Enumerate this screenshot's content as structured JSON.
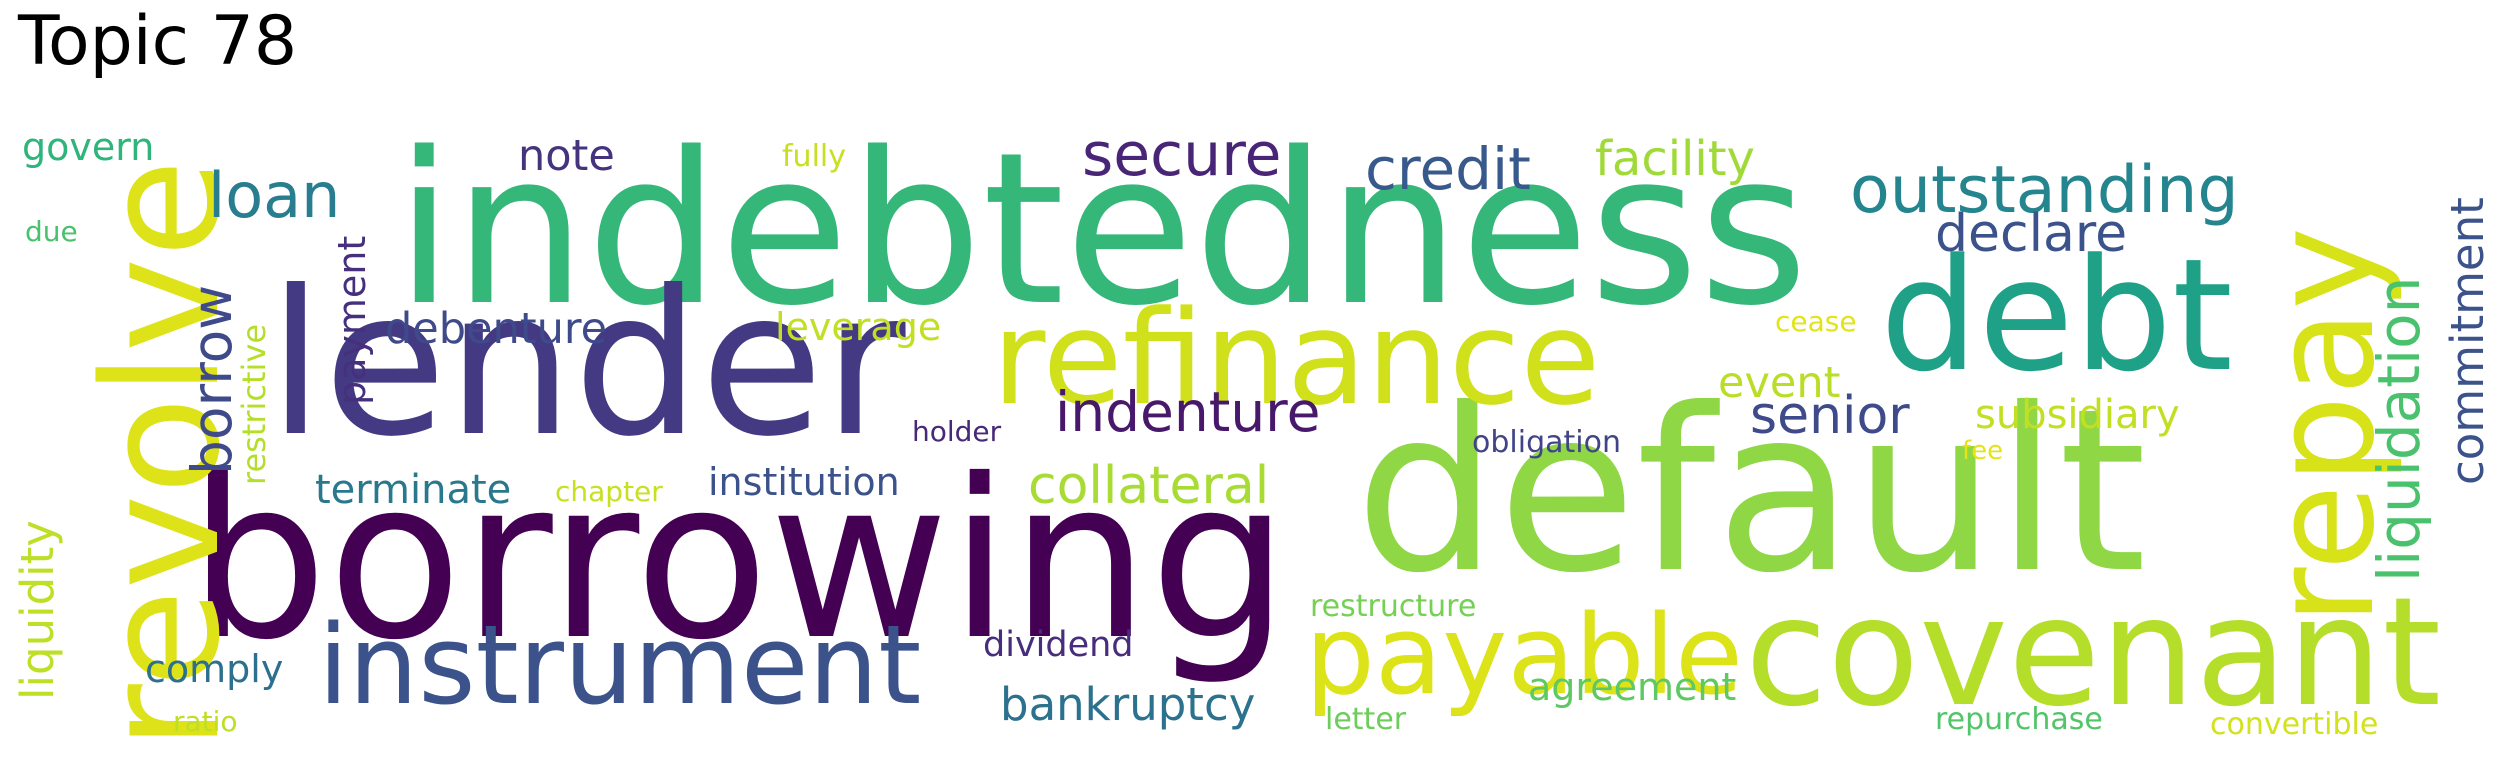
{
  "title": "Topic 78",
  "words": [
    {
      "text": "indebtedness",
      "color": "#35b779"
    },
    {
      "text": "default",
      "color": "#8fd744"
    },
    {
      "text": "borrowing",
      "color": "#440154"
    },
    {
      "text": "lender",
      "color": "#443a83"
    },
    {
      "text": "covenant",
      "color": "#b5de2b"
    },
    {
      "text": "revolve",
      "color": "#dde318"
    },
    {
      "text": "debt",
      "color": "#1fa187"
    },
    {
      "text": "refinance",
      "color": "#d0e11c"
    },
    {
      "text": "repay",
      "color": "#d8e219"
    },
    {
      "text": "instrument",
      "color": "#3b528b"
    },
    {
      "text": "payable",
      "color": "#dce319"
    },
    {
      "text": "outstanding",
      "color": "#25858e"
    },
    {
      "text": "liquidation",
      "color": "#4ac16d"
    },
    {
      "text": "borrow",
      "color": "#3e4a89"
    },
    {
      "text": "loan",
      "color": "#287d8e"
    },
    {
      "text": "secure",
      "color": "#482576"
    },
    {
      "text": "credit",
      "color": "#38598c"
    },
    {
      "text": "indenture",
      "color": "#48186a"
    },
    {
      "text": "declare",
      "color": "#3b528b"
    },
    {
      "text": "senior",
      "color": "#3e4a89"
    },
    {
      "text": "facility",
      "color": "#a0da39"
    },
    {
      "text": "commitment",
      "color": "#3b528b"
    },
    {
      "text": "collateral",
      "color": "#a8db34"
    },
    {
      "text": "bankruptcy",
      "color": "#2c728e"
    },
    {
      "text": "debenture",
      "color": "#3e4a89"
    },
    {
      "text": "liquidity",
      "color": "#bddf26"
    },
    {
      "text": "note",
      "color": "#46337e"
    },
    {
      "text": "event",
      "color": "#bade28"
    },
    {
      "text": "subsidiary",
      "color": "#c2df23"
    },
    {
      "text": "terminate",
      "color": "#2a788e"
    },
    {
      "text": "institution",
      "color": "#3b528b"
    },
    {
      "text": "payment",
      "color": "#46307e"
    },
    {
      "text": "agreement",
      "color": "#5ec962"
    },
    {
      "text": "leverage",
      "color": "#c2df23"
    },
    {
      "text": "comply",
      "color": "#2d708e"
    },
    {
      "text": "restrictive",
      "color": "#b5de2b"
    },
    {
      "text": "dividend",
      "color": "#472d7b"
    },
    {
      "text": "govern",
      "color": "#2fb47c"
    },
    {
      "text": "restructure",
      "color": "#75d054"
    },
    {
      "text": "repurchase",
      "color": "#52c569"
    },
    {
      "text": "convertible",
      "color": "#d2e21b"
    },
    {
      "text": "obligation",
      "color": "#414487"
    },
    {
      "text": "holder",
      "color": "#482878"
    },
    {
      "text": "fully",
      "color": "#c8e020"
    },
    {
      "text": "ratio",
      "color": "#bddf26"
    },
    {
      "text": "letter",
      "color": "#6ccd5a"
    },
    {
      "text": "chapter",
      "color": "#c8e020"
    },
    {
      "text": "cease",
      "color": "#e2e418"
    },
    {
      "text": "fee",
      "color": "#e5e419"
    },
    {
      "text": "due",
      "color": "#4ac16d"
    }
  ]
}
